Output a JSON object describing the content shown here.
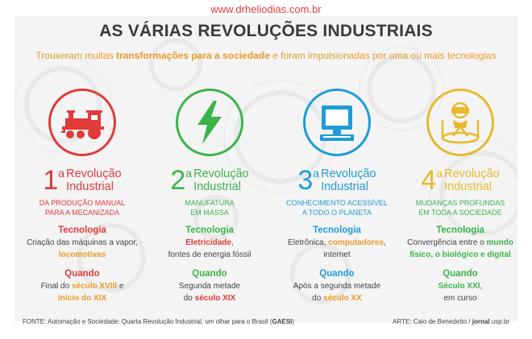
{
  "site": "www.drheliodias.com.br",
  "title": "AS VÁRIAS REVOLUÇÕES INDUSTRIAIS",
  "subtitle": {
    "p1": "Trouxeram muitas ",
    "p2": "transformações para a sociedade",
    "p3": " e foram impulsionadas por uma ou mais tecnologias"
  },
  "columns": [
    {
      "icon": "locomotive-icon",
      "color": "#e03a3a",
      "num": "1",
      "sup": "a",
      "rev1": "Revolução",
      "rev2": "Industrial",
      "desc1": "DA PRODUÇÃO MANUAL",
      "desc2": "PARA A MECANIZADA",
      "tech_label": "Tecnologia",
      "tech_a": "Criação das máquinas a vapor,",
      "tech_b": "locomotivas",
      "tech_c": "",
      "when_label": "Quando",
      "when_a": "Final do ",
      "when_b": "século XVIII",
      "when_c": " e",
      "when_d": "início do XIX"
    },
    {
      "icon": "lightning-bolt-icon",
      "color": "#3bb44a",
      "num": "2",
      "sup": "a",
      "rev1": "Revolução",
      "rev2": "Industrial",
      "desc1": "MANUFATURA",
      "desc2": "EM MASSA",
      "tech_label": "Tecnologia",
      "tech_a": "Eletricidade",
      "tech_b": ",",
      "tech_c": "fontes de energia fóssil",
      "when_label": "Quando",
      "when_a": "Segunda metade",
      "when_b": "do ",
      "when_c": "século XIX",
      "when_d": ""
    },
    {
      "icon": "computer-icon",
      "color": "#1e9cd8",
      "num": "3",
      "sup": "a",
      "rev1": "Revolução",
      "rev2": "Industrial",
      "desc1": "CONHECIMENTO ACESSÍVEL",
      "desc2": "A TODO O PLANETA",
      "tech_label": "Tecnologia",
      "tech_a": "Eletrônica, ",
      "tech_b": "computadores",
      "tech_c": ",",
      "tech_d": "internet",
      "when_label": "Quando",
      "when_a": "Após a segunda metade",
      "when_b": "do ",
      "when_c": "século XX",
      "when_d": ""
    },
    {
      "icon": "virtual-reality-icon",
      "color": "#e9b82a",
      "num": "4",
      "sup": "a",
      "rev1": "Revolução",
      "rev2": "Industrial",
      "desc1": "MUDANÇAS PROFUNDAS",
      "desc2": "EM TODA A SOCIEDADE",
      "tech_label": "Tecnologia",
      "tech_a": "Convergência entre o ",
      "tech_b": "mundo",
      "tech_c": "físico, o biológico e digital",
      "when_label": "Quando",
      "when_a": "Século XXI",
      "when_b": ",",
      "when_c": "em curso",
      "when_d": ""
    }
  ],
  "footer": {
    "left_a": "FONTE: Automação e Sociedade: Quarta Revolução Industrial, um olhar para o Brasil (",
    "left_b": "GAESI",
    "left_c": ")",
    "right_a": "ARTE: Caio de Benedetto / ",
    "right_b": "jornal",
    "right_c": ".usp.br"
  }
}
